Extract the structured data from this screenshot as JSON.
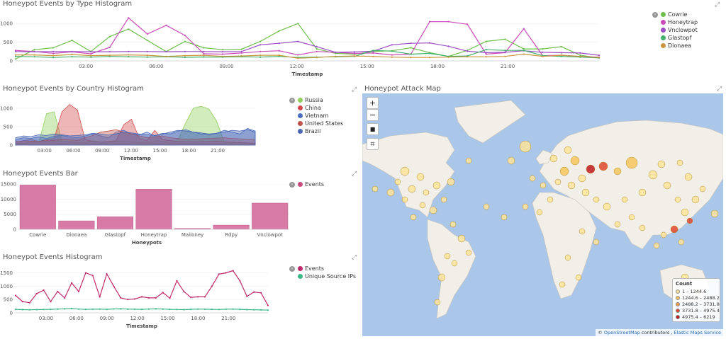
{
  "panels": {
    "type_histogram": {
      "title": "Honeypot Events by Type Histogram",
      "legend": [
        {
          "name": "Cowrie",
          "color": "#6dbf4b"
        },
        {
          "name": "Honeytrap",
          "color": "#c94bb8"
        },
        {
          "name": "Vnclowpot",
          "color": "#9b4bc4"
        },
        {
          "name": "Glastopf",
          "color": "#40b06a"
        },
        {
          "name": "Dionaea",
          "color": "#c8963c"
        }
      ]
    },
    "country_histogram": {
      "title": "Honeypot Events by Country Histogram",
      "legend": [
        {
          "name": "Russia",
          "color": "#8fcf5a"
        },
        {
          "name": "China",
          "color": "#d44a4a"
        },
        {
          "name": "Vietnam",
          "color": "#4a6fc2"
        },
        {
          "name": "United States",
          "color": "#c0534a"
        },
        {
          "name": "Brazil",
          "color": "#4a68b5"
        }
      ]
    },
    "events_bar": {
      "title": "Honeypot Events Bar",
      "legend": [
        {
          "name": "Events",
          "color": "#c94b80"
        }
      ]
    },
    "events_histogram": {
      "title": "Honeypot Events Histogram",
      "legend": [
        {
          "name": "Events",
          "color": "#c02a6a"
        },
        {
          "name": "Unique Source IPs",
          "color": "#3cb889"
        }
      ]
    },
    "attack_map": {
      "title": "Honeypot Attack Map",
      "controls": {
        "zoom_in": "+",
        "zoom_out": "−",
        "stop": "■",
        "crop": "⌗"
      },
      "legend_title": "Count",
      "legend_items": [
        {
          "label": "1 – 1244.6",
          "color": "#fde499"
        },
        {
          "label": "1244.6 – 2488.2",
          "color": "#f7c65b"
        },
        {
          "label": "2488.2 – 3731.8",
          "color": "#f19b3d"
        },
        {
          "label": "3731.8 – 4975.4",
          "color": "#e0462c"
        },
        {
          "label": "4975.4 – 6219",
          "color": "#c0181f"
        }
      ],
      "attribution": {
        "prefix": "© ",
        "osm": "OpenStreetMap",
        "mid": " contributors , ",
        "ems": "Elastic Maps Service"
      }
    }
  },
  "chart_data": [
    {
      "type": "line",
      "title": "Honeypot Events by Type Histogram",
      "xlabel": "Timestamp",
      "ylabel": "",
      "x_ticks": [
        "03:00",
        "06:00",
        "09:00",
        "12:00",
        "15:00",
        "18:00",
        "21:00"
      ],
      "y_ticks": [
        "0",
        "500",
        "1000"
      ],
      "ylim": [
        0,
        1250
      ],
      "series": [
        {
          "name": "Cowrie",
          "color": "#6dbf4b",
          "values": [
            50,
            300,
            350,
            550,
            250,
            650,
            850,
            550,
            250,
            520,
            350,
            300,
            310,
            520,
            800,
            1000,
            320,
            200,
            180,
            250,
            270,
            350,
            220,
            120,
            280,
            520,
            580,
            320,
            320,
            380,
            150,
            80
          ]
        },
        {
          "name": "Honeytrap",
          "color": "#c94bb8",
          "values": [
            280,
            250,
            200,
            240,
            190,
            360,
            1150,
            720,
            950,
            680,
            190,
            180,
            210,
            250,
            270,
            160,
            250,
            230,
            200,
            210,
            160,
            180,
            1050,
            1050,
            980,
            180,
            220,
            860,
            140,
            150,
            120,
            100
          ]
        },
        {
          "name": "Vnclowpot",
          "color": "#9b4bc4",
          "values": [
            250,
            245,
            250,
            250,
            245,
            245,
            250,
            250,
            245,
            250,
            250,
            245,
            250,
            430,
            470,
            520,
            380,
            230,
            240,
            260,
            430,
            470,
            480,
            390,
            260,
            220,
            230,
            270,
            230,
            220,
            210,
            150
          ]
        },
        {
          "name": "Glastopf",
          "color": "#40b06a",
          "values": [
            120,
            110,
            90,
            110,
            100,
            120,
            110,
            100,
            110,
            95,
            105,
            100,
            110,
            100,
            120,
            90,
            100,
            110,
            120,
            280,
            260,
            180,
            200,
            120,
            130,
            300,
            280,
            280,
            140,
            120,
            100,
            80
          ]
        },
        {
          "name": "Dionaea",
          "color": "#c8963c",
          "values": [
            160,
            160,
            140,
            170,
            140,
            150,
            160,
            150,
            120,
            140,
            150,
            120,
            130,
            150,
            150,
            70,
            90,
            120,
            130,
            120,
            100,
            90,
            90,
            100,
            110,
            110,
            120,
            180,
            120,
            150,
            120,
            90
          ]
        }
      ]
    },
    {
      "type": "area",
      "title": "Honeypot Events by Country Histogram",
      "xlabel": "Timestamp",
      "ylabel": "",
      "x_ticks": [
        "03:00",
        "06:00",
        "09:00",
        "12:00",
        "15:00",
        "18:00",
        "21:00"
      ],
      "y_ticks": [
        "0",
        "500",
        "1000"
      ],
      "ylim": [
        0,
        1150
      ],
      "series": [
        {
          "name": "Russia",
          "color": "#8fcf5a",
          "values": [
            60,
            50,
            80,
            70,
            850,
            900,
            90,
            80,
            70,
            60,
            120,
            80,
            70,
            100,
            90,
            80,
            70,
            60,
            80,
            90,
            60,
            150,
            600,
            1000,
            1050,
            980,
            650,
            80,
            60,
            70,
            60,
            50
          ]
        },
        {
          "name": "China",
          "color": "#d44a4a",
          "values": [
            80,
            120,
            150,
            100,
            150,
            180,
            900,
            1100,
            950,
            150,
            100,
            80,
            100,
            120,
            550,
            700,
            180,
            120,
            400,
            150,
            120,
            100,
            90,
            80,
            90,
            100,
            110,
            90,
            80,
            70,
            60,
            50
          ]
        },
        {
          "name": "Vietnam",
          "color": "#4a6fc2",
          "values": [
            150,
            200,
            180,
            220,
            180,
            240,
            260,
            220,
            200,
            250,
            300,
            250,
            200,
            350,
            400,
            300,
            280,
            350,
            250,
            320,
            300,
            380,
            420,
            350,
            300,
            280,
            320,
            400,
            350,
            300,
            450,
            380
          ]
        },
        {
          "name": "United States",
          "color": "#c0534a",
          "values": [
            100,
            90,
            110,
            100,
            120,
            130,
            150,
            140,
            130,
            200,
            260,
            350,
            380,
            420,
            350,
            300,
            250,
            200,
            220,
            250,
            200,
            180,
            150,
            160,
            170,
            180,
            190,
            200,
            180,
            170,
            160,
            150
          ]
        },
        {
          "name": "Brazil",
          "color": "#4a68b5",
          "values": [
            200,
            250,
            230,
            280,
            260,
            300,
            280,
            250,
            260,
            280,
            320,
            300,
            270,
            300,
            350,
            330,
            300,
            280,
            260,
            300,
            350,
            400,
            380,
            350,
            330,
            300,
            320,
            350,
            400,
            380,
            420,
            350
          ]
        }
      ]
    },
    {
      "type": "bar",
      "title": "Honeypot Events Bar",
      "xlabel": "Honeypots",
      "ylabel": "",
      "categories": [
        "Cowrie",
        "Dionaea",
        "Glastopf",
        "Honeytrap",
        "Mailoney",
        "Rdpy",
        "Vnclowpot"
      ],
      "series": [
        {
          "name": "Events",
          "values": [
            14700,
            2800,
            4200,
            13300,
            300,
            1400,
            8700
          ]
        }
      ],
      "y_ticks": [
        "0",
        "5000",
        "10000",
        "15000"
      ],
      "ylim": [
        0,
        15500
      ]
    },
    {
      "type": "line",
      "title": "Honeypot Events Histogram",
      "xlabel": "Timestamp",
      "ylabel": "",
      "x_ticks": [
        "03:00",
        "06:00",
        "09:00",
        "12:00",
        "15:00",
        "18:00",
        "21:00"
      ],
      "y_ticks": [
        "0",
        "500",
        "1000",
        "1500"
      ],
      "ylim": [
        0,
        1700
      ],
      "series": [
        {
          "name": "Events",
          "color": "#c02a6a",
          "values": [
            650,
            420,
            380,
            720,
            850,
            420,
            800,
            560,
            1120,
            800,
            1500,
            1400,
            600,
            1460,
            1000,
            560,
            500,
            520,
            600,
            560,
            560,
            760,
            550,
            1200,
            800,
            580,
            600,
            600,
            1000,
            1450,
            1500,
            1580,
            1200,
            620,
            780,
            750,
            280
          ]
        },
        {
          "name": "Unique Source IPs",
          "color": "#3cb889",
          "values": [
            130,
            120,
            115,
            120,
            125,
            130,
            140,
            150,
            160,
            140,
            130,
            135,
            140,
            130,
            145,
            150,
            140,
            135,
            130,
            140,
            150,
            140,
            130,
            125,
            120,
            130,
            140,
            135,
            130,
            125,
            135,
            140,
            130,
            120,
            115,
            110,
            100
          ]
        }
      ]
    }
  ]
}
